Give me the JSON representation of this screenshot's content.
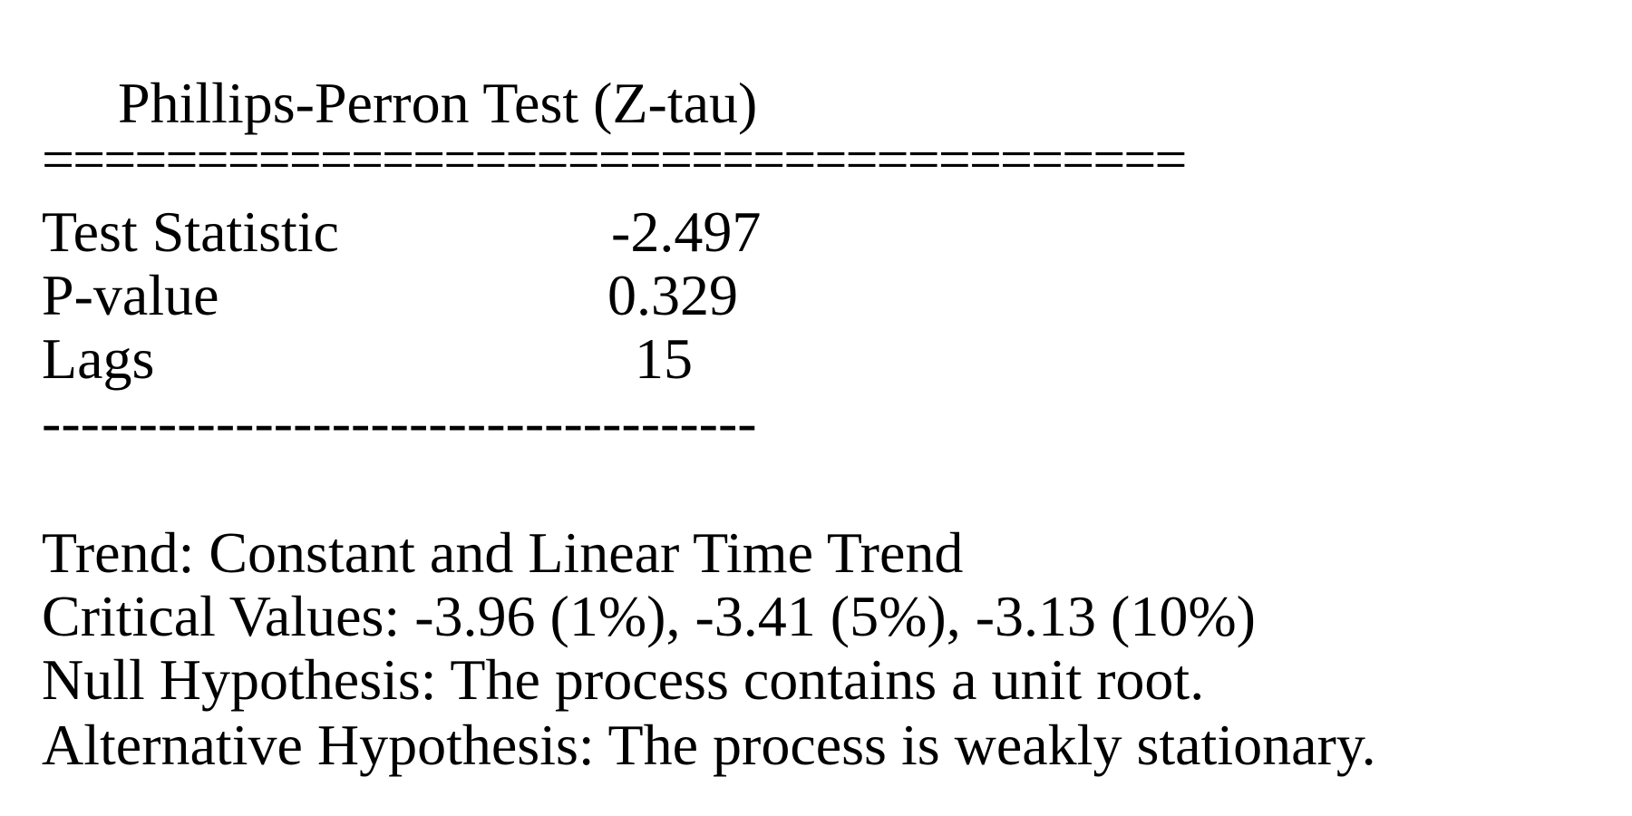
{
  "title": "Phillips-Perron Test (Z-tau)",
  "double_rule": "=====================================",
  "rows": [
    {
      "label": "Test Statistic",
      "value": "-2.497"
    },
    {
      "label": "P-value",
      "value": "0.329"
    },
    {
      "label": "Lags",
      "value": "15"
    }
  ],
  "dash_rule": "-------------------------------------",
  "notes": {
    "trend": "Trend: Constant and Linear Time Trend",
    "critical_values": "Critical Values: -3.96 (1%), -3.41 (5%), -3.13 (10%)",
    "null_hypothesis": "Null Hypothesis: The process contains a unit root.",
    "alternative_hypothesis": "Alternative Hypothesis: The process is weakly stationary."
  }
}
